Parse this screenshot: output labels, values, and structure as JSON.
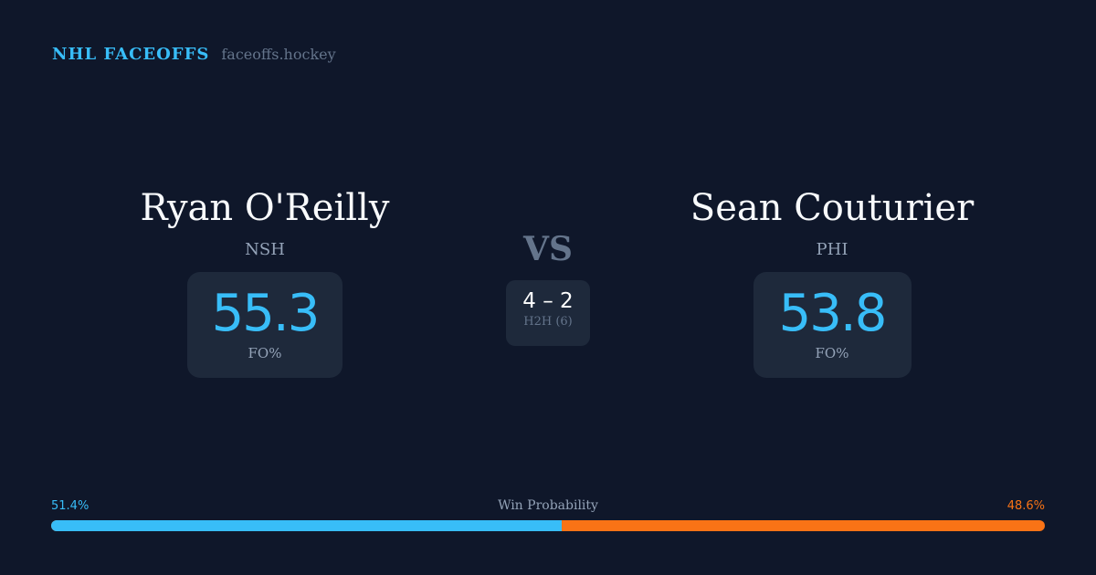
{
  "brand": {
    "name": "NHL FACEOFFS",
    "site": "faceoffs.hockey"
  },
  "left": {
    "name": "Ryan O'Reilly",
    "team": "NSH",
    "fo_pct": "55.3",
    "fo_label": "FO%"
  },
  "right": {
    "name": "Sean Couturier",
    "team": "PHI",
    "fo_pct": "53.8",
    "fo_label": "FO%"
  },
  "vs": "VS",
  "h2h": {
    "score": "4 – 2",
    "label": "H2H (6)"
  },
  "win_probability": {
    "label": "Win Probability",
    "left_text": "51.4%",
    "right_text": "48.6%",
    "left_value": 51.4,
    "right_value": 48.6,
    "left_color": "#38bdf8",
    "right_color": "#f97316"
  }
}
